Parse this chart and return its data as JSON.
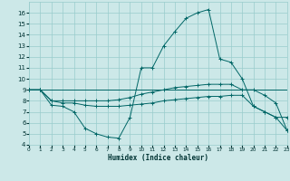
{
  "xlabel": "Humidex (Indice chaleur)",
  "background_color": "#cce8e8",
  "grid_color": "#99cccc",
  "line_color": "#006666",
  "xlim": [
    0,
    23
  ],
  "ylim": [
    4,
    17
  ],
  "xticks": [
    0,
    1,
    2,
    3,
    4,
    5,
    6,
    7,
    8,
    9,
    10,
    11,
    12,
    13,
    14,
    15,
    16,
    17,
    18,
    19,
    20,
    21,
    22,
    23
  ],
  "yticks": [
    4,
    5,
    6,
    7,
    8,
    9,
    10,
    11,
    12,
    13,
    14,
    15,
    16
  ],
  "line1_x": [
    0,
    1,
    2,
    3,
    4,
    5,
    6,
    7,
    8,
    9,
    10,
    11,
    12,
    13,
    14,
    15,
    16,
    17,
    18,
    19,
    20,
    21,
    22,
    23
  ],
  "line1_y": [
    9,
    9,
    7.6,
    7.5,
    7.0,
    5.5,
    5.0,
    4.7,
    4.6,
    6.5,
    11.0,
    11.0,
    13.0,
    14.3,
    15.5,
    16.0,
    16.3,
    11.8,
    11.5,
    10.0,
    7.5,
    7.0,
    6.5,
    6.5
  ],
  "line2_x": [
    0,
    1,
    2,
    3,
    4,
    5,
    6,
    7,
    8,
    9,
    10,
    11,
    12,
    13,
    14,
    15,
    16,
    17,
    18,
    19,
    20,
    21,
    22,
    23
  ],
  "line2_y": [
    9,
    9,
    8.0,
    8.0,
    8.0,
    8.0,
    8.0,
    8.0,
    8.1,
    8.3,
    8.6,
    8.8,
    9.0,
    9.2,
    9.3,
    9.4,
    9.5,
    9.5,
    9.5,
    9.0,
    9.0,
    8.5,
    7.8,
    5.3
  ],
  "line3_x": [
    0,
    1,
    2,
    3,
    4,
    5,
    6,
    7,
    8,
    9,
    10,
    11,
    12,
    13,
    14,
    15,
    16,
    17,
    18,
    19,
    20,
    21,
    22,
    23
  ],
  "line3_y": [
    9,
    9,
    8.0,
    7.8,
    7.8,
    7.6,
    7.5,
    7.5,
    7.5,
    7.6,
    7.7,
    7.8,
    8.0,
    8.1,
    8.2,
    8.3,
    8.4,
    8.4,
    8.5,
    8.5,
    7.5,
    7.0,
    6.5,
    5.3
  ],
  "line4_x": [
    0,
    23
  ],
  "line4_y": [
    9,
    9
  ]
}
